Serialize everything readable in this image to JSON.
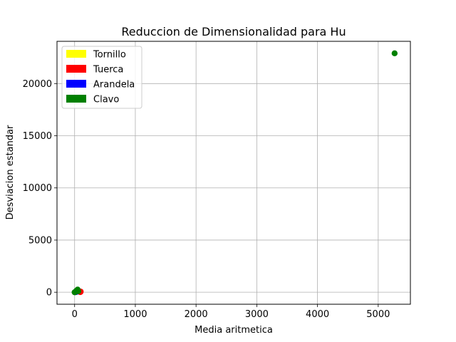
{
  "chart_data": {
    "type": "scatter",
    "title": "Reduccion de Dimensionalidad para Hu",
    "xlabel": "Media aritmetica",
    "ylabel": "Desviacion estandar",
    "xlim": [
      -290,
      5530
    ],
    "ylim": [
      -1150,
      24050
    ],
    "xticks": [
      0,
      1000,
      2000,
      3000,
      4000,
      5000
    ],
    "yticks": [
      0,
      5000,
      10000,
      15000,
      20000
    ],
    "grid": true,
    "legend_position": "upper-left",
    "series": [
      {
        "name": "Tornillo",
        "color": "#ffff00",
        "points": [
          [
            10,
            15
          ],
          [
            25,
            30
          ],
          [
            15,
            5
          ]
        ]
      },
      {
        "name": "Tuerca",
        "color": "#ff0000",
        "points": [
          [
            100,
            60
          ],
          [
            80,
            40
          ],
          [
            95,
            20
          ]
        ]
      },
      {
        "name": "Arandela",
        "color": "#0000ff",
        "points": [
          [
            20,
            20
          ],
          [
            35,
            40
          ],
          [
            10,
            10
          ]
        ]
      },
      {
        "name": "Clavo",
        "color": "#008000",
        "points": [
          [
            0,
            0
          ],
          [
            15,
            40
          ],
          [
            30,
            150
          ],
          [
            50,
            250
          ],
          [
            60,
            100
          ],
          [
            5270,
            22900
          ]
        ]
      }
    ]
  }
}
